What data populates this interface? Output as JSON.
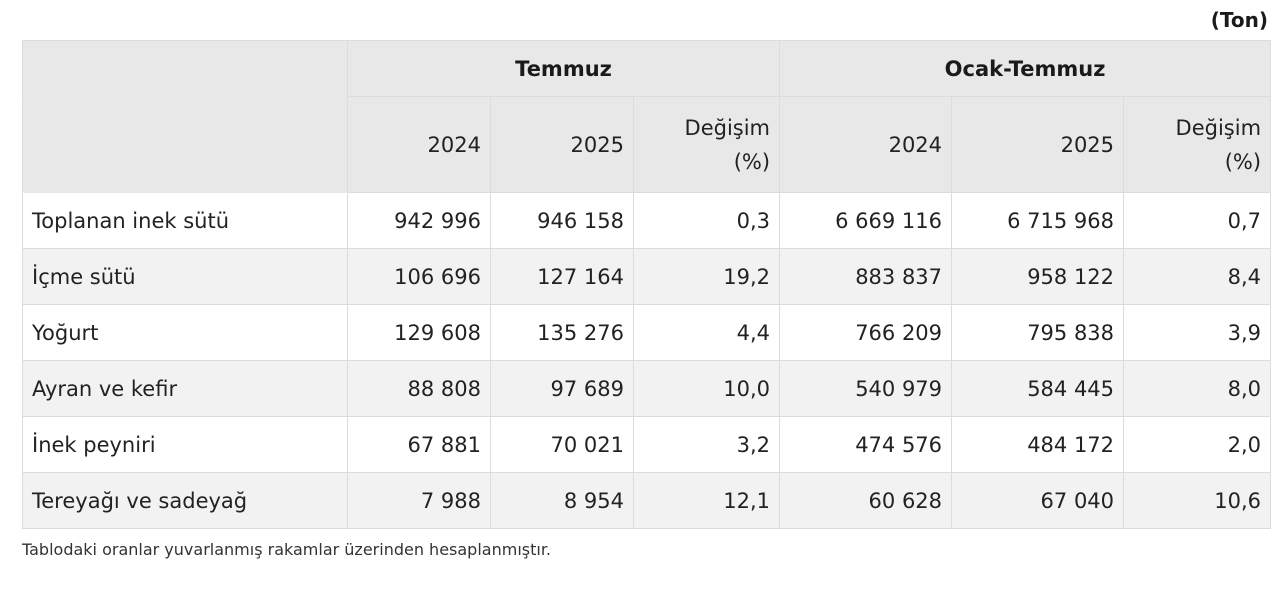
{
  "unit_label": "(Ton)",
  "groups": {
    "month": "Temmuz",
    "cumulative": "Ocak-Temmuz"
  },
  "columns": {
    "y2024": "2024",
    "y2025": "2025",
    "change_line1": "Değişim",
    "change_line2": "(%)"
  },
  "rows": [
    {
      "label": "Toplanan inek sütü",
      "m2024": "942 996",
      "m2025": "946 158",
      "mchg": "0,3",
      "c2024": "6 669 116",
      "c2025": "6 715 968",
      "cchg": "0,7"
    },
    {
      "label": "İçme sütü",
      "m2024": "106 696",
      "m2025": "127 164",
      "mchg": "19,2",
      "c2024": "883 837",
      "c2025": "958 122",
      "cchg": "8,4"
    },
    {
      "label": "Yoğurt",
      "m2024": "129 608",
      "m2025": "135 276",
      "mchg": "4,4",
      "c2024": "766 209",
      "c2025": "795 838",
      "cchg": "3,9"
    },
    {
      "label": "Ayran ve kefir",
      "m2024": "88 808",
      "m2025": "97 689",
      "mchg": "10,0",
      "c2024": "540 979",
      "c2025": "584 445",
      "cchg": "8,0"
    },
    {
      "label": "İnek peyniri",
      "m2024": "67 881",
      "m2025": "70 021",
      "mchg": "3,2",
      "c2024": "474 576",
      "c2025": "484 172",
      "cchg": "2,0"
    },
    {
      "label": "Tereyağı ve sadeyağ",
      "m2024": "7 988",
      "m2025": "8 954",
      "mchg": "12,1",
      "c2024": "60 628",
      "c2025": "67 040",
      "cchg": "10,6"
    }
  ],
  "footnote": "Tablodaki oranlar yuvarlanmış rakamlar üzerinden hesaplanmıştır."
}
